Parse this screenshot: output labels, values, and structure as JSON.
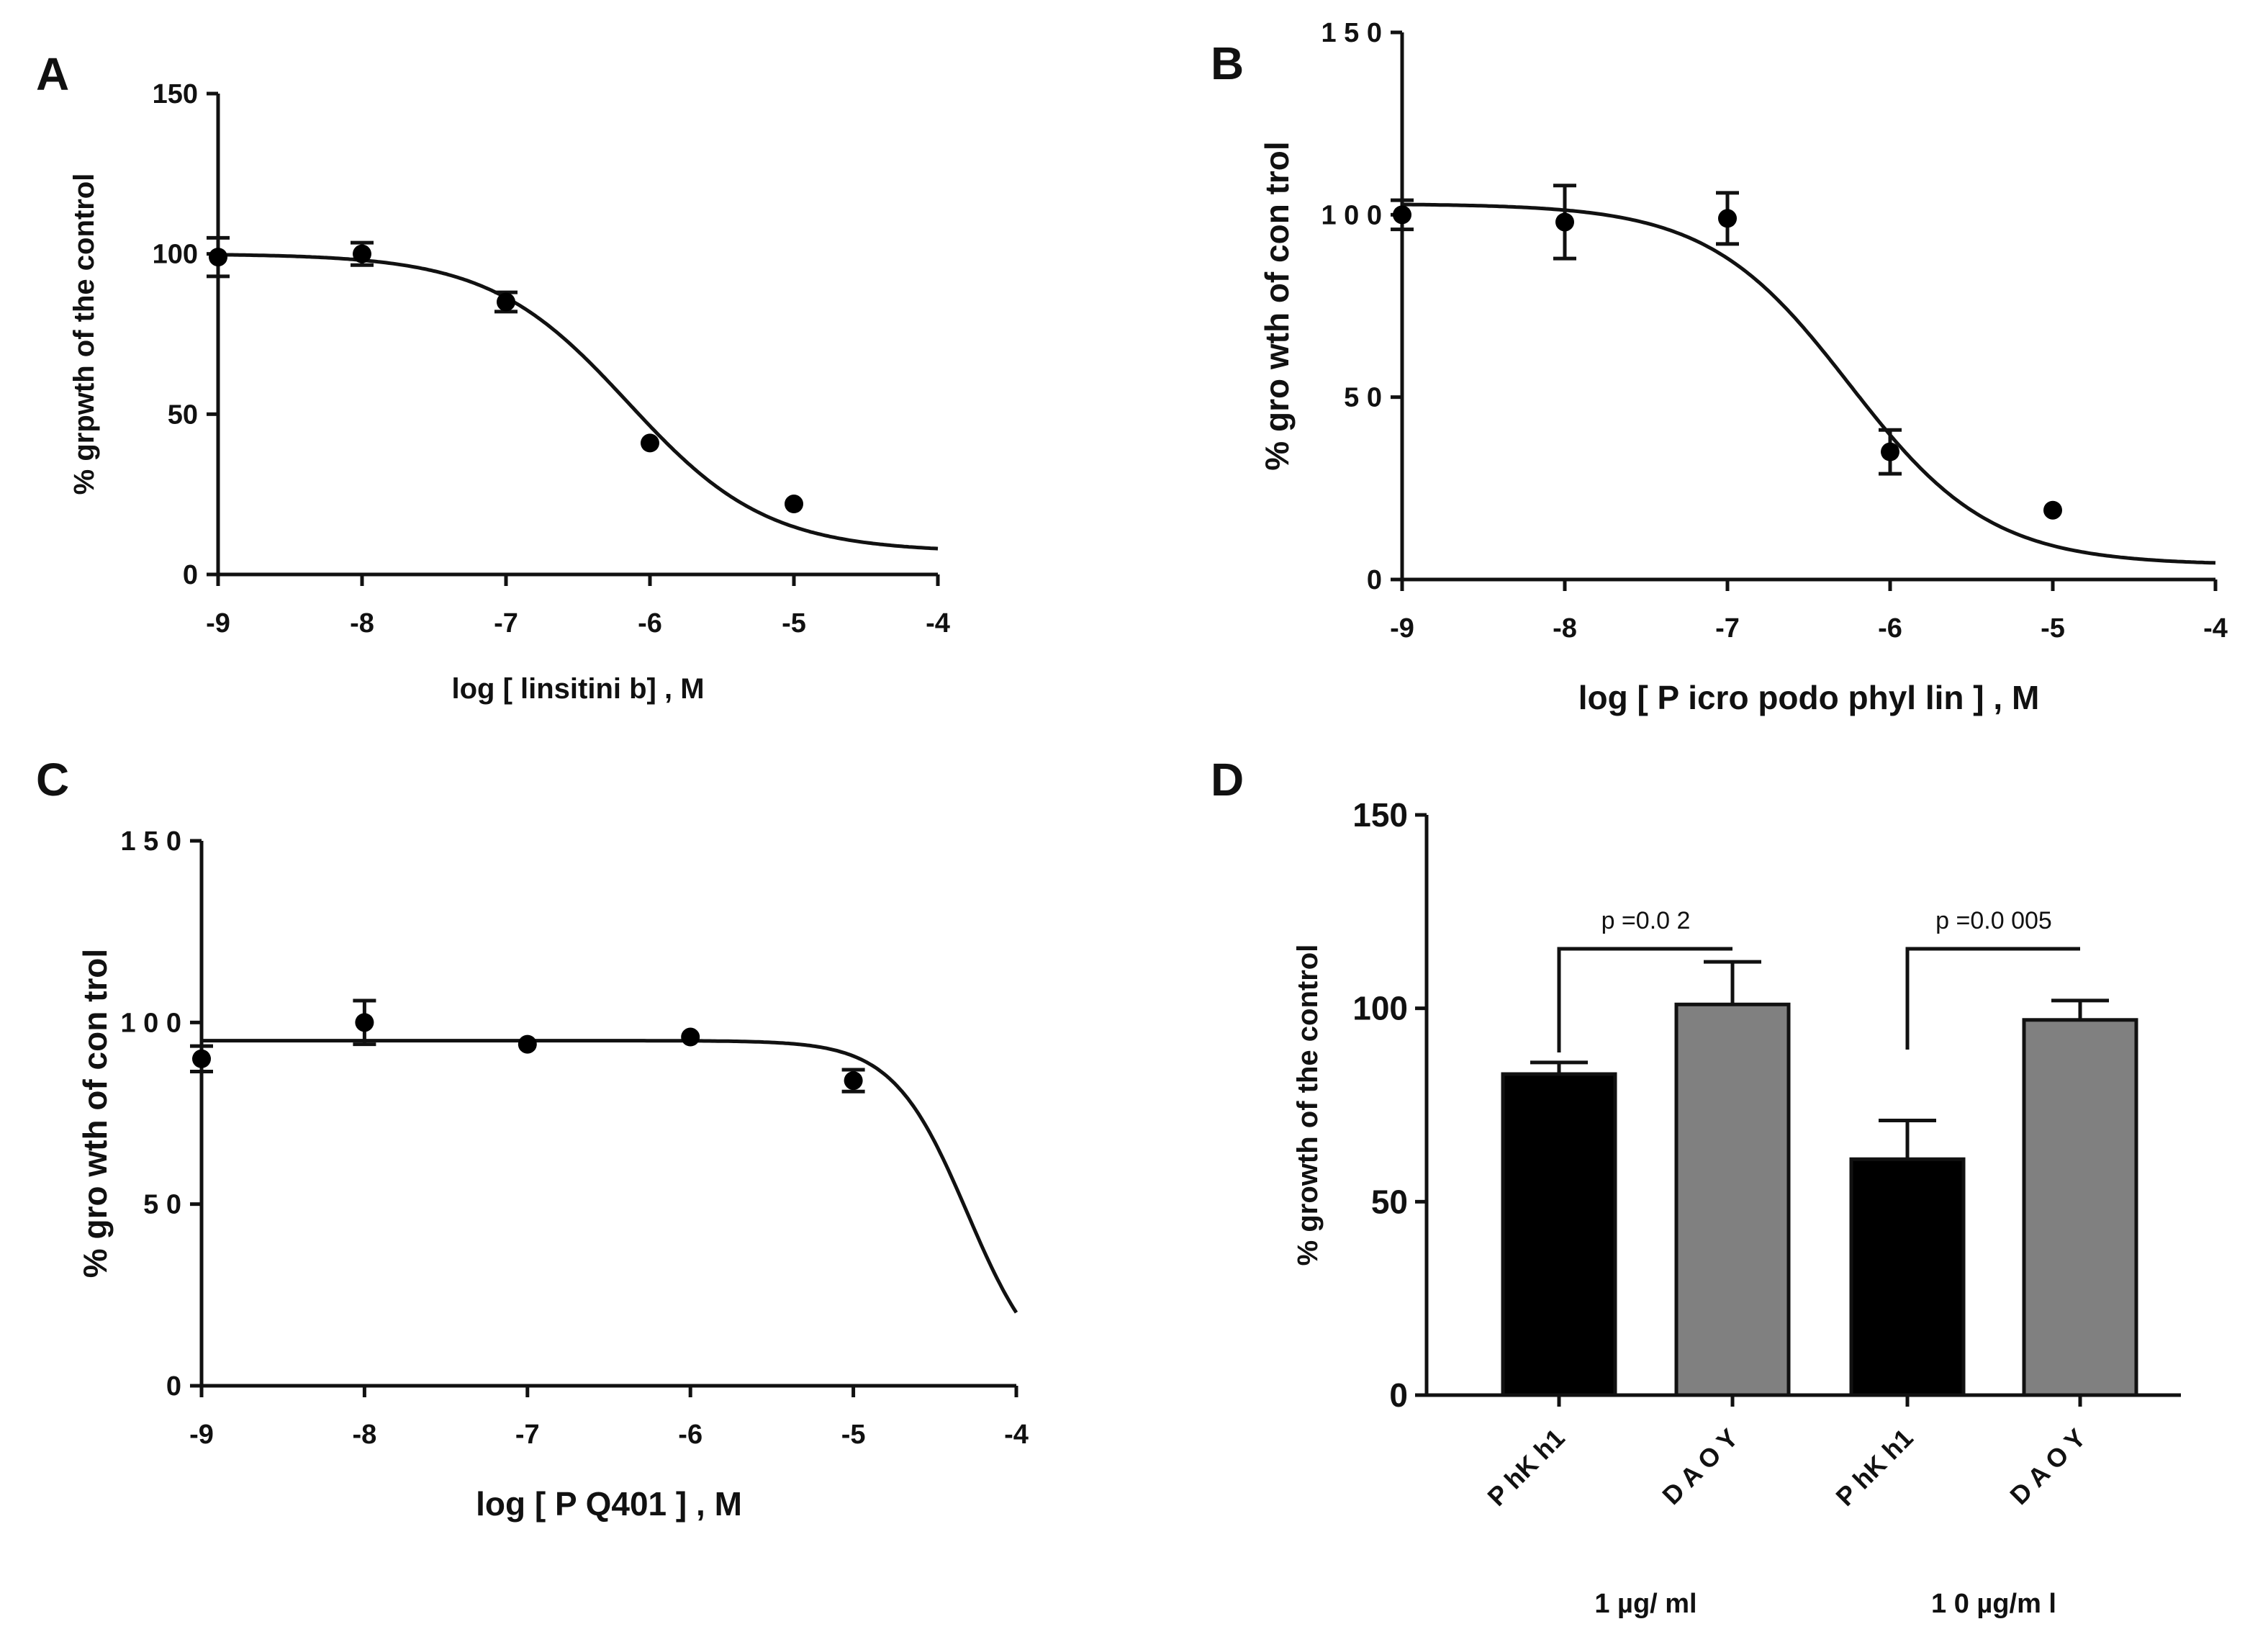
{
  "chart_data": [
    {
      "id": "A",
      "type": "scatter",
      "panel_label": "A",
      "xlabel": "log [ linsitini b] , M",
      "ylabel": "% grpwth of the control",
      "xlim": [
        -9,
        -4
      ],
      "ylim": [
        0,
        150
      ],
      "x_ticks": [
        -9,
        -8,
        -7,
        -6,
        -5,
        -4
      ],
      "x_tick_labels": [
        "-9",
        "-8",
        "-7",
        "-6",
        "-5",
        "-4"
      ],
      "y_ticks": [
        0,
        50,
        100,
        150
      ],
      "y_tick_labels": [
        "0",
        "50",
        "100",
        "150"
      ],
      "points": [
        {
          "x": -9,
          "y": 99,
          "err": 6
        },
        {
          "x": -8,
          "y": 100,
          "err": 3.5
        },
        {
          "x": -7,
          "y": 85,
          "err": 3
        },
        {
          "x": -6,
          "y": 41,
          "err": 0
        },
        {
          "x": -5,
          "y": 22,
          "err": 0
        }
      ],
      "fit": {
        "bottom": 7,
        "top": 100,
        "logEC50": -6.15,
        "hill": 0.9
      }
    },
    {
      "id": "B",
      "type": "scatter",
      "panel_label": "B",
      "xlabel": "log [ P icro podo phyl lin   ] ,  M",
      "ylabel": "%  gro wth  of  con trol",
      "xlim": [
        -9,
        -4
      ],
      "ylim": [
        0,
        150
      ],
      "x_ticks": [
        -9,
        -8,
        -7,
        -6,
        -5,
        -4
      ],
      "x_tick_labels": [
        "-9",
        "-8",
        "-7",
        "-6",
        "-5",
        "-4"
      ],
      "y_ticks": [
        0,
        50,
        100,
        150
      ],
      "y_tick_labels": [
        "0",
        "5 0",
        "1 0 0",
        "1 5 0"
      ],
      "points": [
        {
          "x": -9,
          "y": 100,
          "err": 4
        },
        {
          "x": -8,
          "y": 98,
          "err": 10
        },
        {
          "x": -7,
          "y": 99,
          "err": 7
        },
        {
          "x": -6,
          "y": 35,
          "err": 6
        },
        {
          "x": -5,
          "y": 19,
          "err": 0
        }
      ],
      "fit": {
        "bottom": 4,
        "top": 103,
        "logEC50": -6.25,
        "hill": 1.0
      }
    },
    {
      "id": "C",
      "type": "scatter",
      "panel_label": "C",
      "xlabel": "log [ P Q401 ] ,  M",
      "ylabel": "%  gro wth  of  con trol",
      "xlim": [
        -9,
        -4
      ],
      "ylim": [
        0,
        150
      ],
      "x_ticks": [
        -9,
        -8,
        -7,
        -6,
        -5,
        -4
      ],
      "x_tick_labels": [
        "-9",
        "-8",
        "-7",
        "-6",
        "-5",
        "-4"
      ],
      "y_ticks": [
        0,
        50,
        100,
        150
      ],
      "y_tick_labels": [
        "0",
        "5 0",
        "1 0 0",
        "1 5 0"
      ],
      "points": [
        {
          "x": -9,
          "y": 90,
          "err": 3.5
        },
        {
          "x": -8,
          "y": 100,
          "err": 6
        },
        {
          "x": -7,
          "y": 94,
          "err": 0
        },
        {
          "x": -6,
          "y": 96,
          "err": 0
        },
        {
          "x": -5,
          "y": 84,
          "err": 3
        }
      ],
      "fit": {
        "bottom": 0,
        "top": 95,
        "logEC50": -4.3,
        "hill": 1.9
      }
    },
    {
      "id": "D",
      "type": "bar",
      "panel_label": "D",
      "ylabel": "% growth of the control",
      "ylim": [
        0,
        150
      ],
      "y_ticks": [
        0,
        50,
        100,
        150
      ],
      "y_tick_labels": [
        "0",
        "50",
        "100",
        "150"
      ],
      "categories": [
        "P hK h1",
        "D A O Y",
        "P hK h1",
        "D A O Y"
      ],
      "values": [
        83,
        101,
        61,
        97
      ],
      "errors": [
        3,
        11,
        10,
        5
      ],
      "colors": [
        "#000000",
        "#808080",
        "#000000",
        "#808080"
      ],
      "group_labels": [
        "1  µg/ ml",
        "1 0  µg/m l"
      ],
      "comparisons": [
        {
          "from": 0,
          "to": 1,
          "label": "p =0.0 2"
        },
        {
          "from": 2,
          "to": 3,
          "label": "p =0.0 005"
        }
      ]
    }
  ]
}
